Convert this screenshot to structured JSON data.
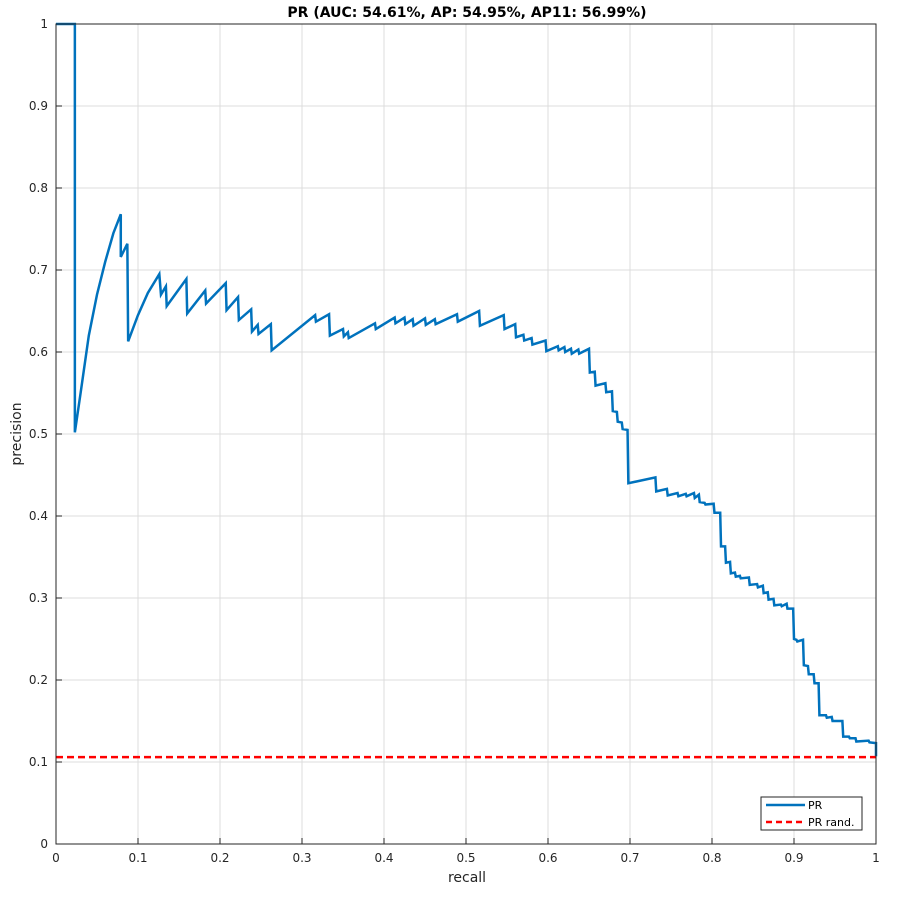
{
  "chart_data": {
    "type": "line",
    "title": "PR (AUC: 54.61%, AP: 54.95%, AP11: 56.99%)",
    "xlabel": "recall",
    "ylabel": "precision",
    "xlim": [
      0,
      1
    ],
    "ylim": [
      0,
      1
    ],
    "xticks": [
      "0",
      "0.1",
      "0.2",
      "0.3",
      "0.4",
      "0.5",
      "0.6",
      "0.7",
      "0.8",
      "0.9",
      "1"
    ],
    "yticks": [
      "0",
      "0.1",
      "0.2",
      "0.3",
      "0.4",
      "0.5",
      "0.6",
      "0.7",
      "0.8",
      "0.9",
      "1"
    ],
    "grid": true,
    "legend_position": "bottom-right",
    "series": [
      {
        "name": "PR",
        "color": "#0072BD",
        "style": "solid",
        "points": [
          [
            0.0,
            1.0
          ],
          [
            0.023,
            1.0
          ],
          [
            0.023,
            0.502
          ],
          [
            0.03,
            0.55
          ],
          [
            0.04,
            0.62
          ],
          [
            0.05,
            0.67
          ],
          [
            0.06,
            0.71
          ],
          [
            0.07,
            0.745
          ],
          [
            0.079,
            0.768
          ],
          [
            0.079,
            0.716
          ],
          [
            0.087,
            0.732
          ],
          [
            0.088,
            0.613
          ],
          [
            0.1,
            0.645
          ],
          [
            0.112,
            0.672
          ],
          [
            0.126,
            0.695
          ],
          [
            0.128,
            0.67
          ],
          [
            0.134,
            0.68
          ],
          [
            0.135,
            0.656
          ],
          [
            0.159,
            0.689
          ],
          [
            0.16,
            0.647
          ],
          [
            0.182,
            0.675
          ],
          [
            0.183,
            0.659
          ],
          [
            0.207,
            0.684
          ],
          [
            0.208,
            0.651
          ],
          [
            0.222,
            0.667
          ],
          [
            0.223,
            0.639
          ],
          [
            0.238,
            0.652
          ],
          [
            0.239,
            0.625
          ],
          [
            0.246,
            0.633
          ],
          [
            0.247,
            0.622
          ],
          [
            0.262,
            0.634
          ],
          [
            0.263,
            0.602
          ],
          [
            0.316,
            0.645
          ],
          [
            0.317,
            0.637
          ],
          [
            0.333,
            0.646
          ],
          [
            0.334,
            0.62
          ],
          [
            0.35,
            0.628
          ],
          [
            0.351,
            0.619
          ],
          [
            0.356,
            0.624
          ],
          [
            0.357,
            0.617
          ],
          [
            0.389,
            0.635
          ],
          [
            0.39,
            0.628
          ],
          [
            0.413,
            0.642
          ],
          [
            0.414,
            0.635
          ],
          [
            0.425,
            0.642
          ],
          [
            0.426,
            0.634
          ],
          [
            0.435,
            0.64
          ],
          [
            0.436,
            0.632
          ],
          [
            0.45,
            0.641
          ],
          [
            0.451,
            0.633
          ],
          [
            0.462,
            0.64
          ],
          [
            0.463,
            0.634
          ],
          [
            0.489,
            0.646
          ],
          [
            0.49,
            0.637
          ],
          [
            0.516,
            0.65
          ],
          [
            0.517,
            0.632
          ],
          [
            0.546,
            0.645
          ],
          [
            0.547,
            0.628
          ],
          [
            0.56,
            0.634
          ],
          [
            0.561,
            0.618
          ],
          [
            0.57,
            0.621
          ],
          [
            0.571,
            0.614
          ],
          [
            0.58,
            0.617
          ],
          [
            0.581,
            0.609
          ],
          [
            0.597,
            0.614
          ],
          [
            0.598,
            0.601
          ],
          [
            0.612,
            0.607
          ],
          [
            0.613,
            0.602
          ],
          [
            0.62,
            0.606
          ],
          [
            0.621,
            0.6
          ],
          [
            0.628,
            0.604
          ],
          [
            0.629,
            0.598
          ],
          [
            0.637,
            0.603
          ],
          [
            0.638,
            0.598
          ],
          [
            0.65,
            0.604
          ],
          [
            0.651,
            0.575
          ],
          [
            0.657,
            0.576
          ],
          [
            0.658,
            0.559
          ],
          [
            0.67,
            0.562
          ],
          [
            0.671,
            0.551
          ],
          [
            0.678,
            0.552
          ],
          [
            0.679,
            0.528
          ],
          [
            0.684,
            0.527
          ],
          [
            0.685,
            0.515
          ],
          [
            0.69,
            0.514
          ],
          [
            0.691,
            0.506
          ],
          [
            0.697,
            0.505
          ],
          [
            0.698,
            0.44
          ],
          [
            0.731,
            0.447
          ],
          [
            0.732,
            0.43
          ],
          [
            0.745,
            0.433
          ],
          [
            0.746,
            0.425
          ],
          [
            0.758,
            0.428
          ],
          [
            0.759,
            0.424
          ],
          [
            0.768,
            0.427
          ],
          [
            0.769,
            0.424
          ],
          [
            0.778,
            0.428
          ],
          [
            0.779,
            0.422
          ],
          [
            0.784,
            0.426
          ],
          [
            0.785,
            0.417
          ],
          [
            0.791,
            0.416
          ],
          [
            0.792,
            0.414
          ],
          [
            0.802,
            0.415
          ],
          [
            0.803,
            0.404
          ],
          [
            0.81,
            0.404
          ],
          [
            0.811,
            0.363
          ],
          [
            0.816,
            0.363
          ],
          [
            0.817,
            0.343
          ],
          [
            0.822,
            0.344
          ],
          [
            0.823,
            0.33
          ],
          [
            0.828,
            0.331
          ],
          [
            0.829,
            0.326
          ],
          [
            0.834,
            0.327
          ],
          [
            0.835,
            0.324
          ],
          [
            0.845,
            0.325
          ],
          [
            0.846,
            0.316
          ],
          [
            0.855,
            0.317
          ],
          [
            0.856,
            0.313
          ],
          [
            0.862,
            0.315
          ],
          [
            0.863,
            0.306
          ],
          [
            0.868,
            0.307
          ],
          [
            0.869,
            0.298
          ],
          [
            0.875,
            0.299
          ],
          [
            0.876,
            0.291
          ],
          [
            0.884,
            0.292
          ],
          [
            0.885,
            0.29
          ],
          [
            0.891,
            0.293
          ],
          [
            0.892,
            0.287
          ],
          [
            0.899,
            0.287
          ],
          [
            0.9,
            0.25
          ],
          [
            0.903,
            0.249
          ],
          [
            0.904,
            0.247
          ],
          [
            0.911,
            0.249
          ],
          [
            0.912,
            0.218
          ],
          [
            0.917,
            0.217
          ],
          [
            0.918,
            0.207
          ],
          [
            0.924,
            0.207
          ],
          [
            0.925,
            0.196
          ],
          [
            0.93,
            0.196
          ],
          [
            0.931,
            0.157
          ],
          [
            0.939,
            0.157
          ],
          [
            0.94,
            0.154
          ],
          [
            0.946,
            0.155
          ],
          [
            0.947,
            0.15
          ],
          [
            0.959,
            0.15
          ],
          [
            0.96,
            0.131
          ],
          [
            0.967,
            0.131
          ],
          [
            0.968,
            0.129
          ],
          [
            0.975,
            0.129
          ],
          [
            0.976,
            0.125
          ],
          [
            0.991,
            0.126
          ],
          [
            0.992,
            0.124
          ],
          [
            1.0,
            0.123
          ],
          [
            1.0,
            0.107
          ]
        ]
      },
      {
        "name": "PR rand.",
        "color": "#FF0000",
        "style": "dashed",
        "points": [
          [
            0,
            0.106
          ],
          [
            1,
            0.106
          ]
        ]
      }
    ]
  }
}
